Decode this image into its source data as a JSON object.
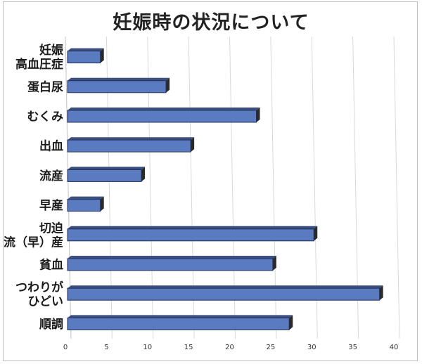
{
  "chart_data": {
    "type": "bar",
    "orientation": "horizontal",
    "title": "妊娠時の状況について",
    "categories": [
      [
        "妊娠",
        "高血圧症"
      ],
      [
        "蛋白尿"
      ],
      [
        "むくみ"
      ],
      [
        "出血"
      ],
      [
        "流産"
      ],
      [
        "早産"
      ],
      [
        "切迫",
        "流（早）産"
      ],
      [
        "貧血"
      ],
      [
        "つわりが",
        "ひどい"
      ],
      [
        "順調"
      ]
    ],
    "values": [
      4,
      12,
      23,
      15,
      9,
      4,
      30,
      25,
      38,
      27
    ],
    "xlim": [
      0,
      40
    ],
    "xticks": [
      "0",
      "5",
      "10",
      "15",
      "20",
      "25",
      "30",
      "35",
      "40"
    ],
    "grid": true,
    "bar_color": "#5a7bbf",
    "bar_edge_color": "#1f2f55",
    "bar_shadow_color": "#2a2a2a"
  }
}
